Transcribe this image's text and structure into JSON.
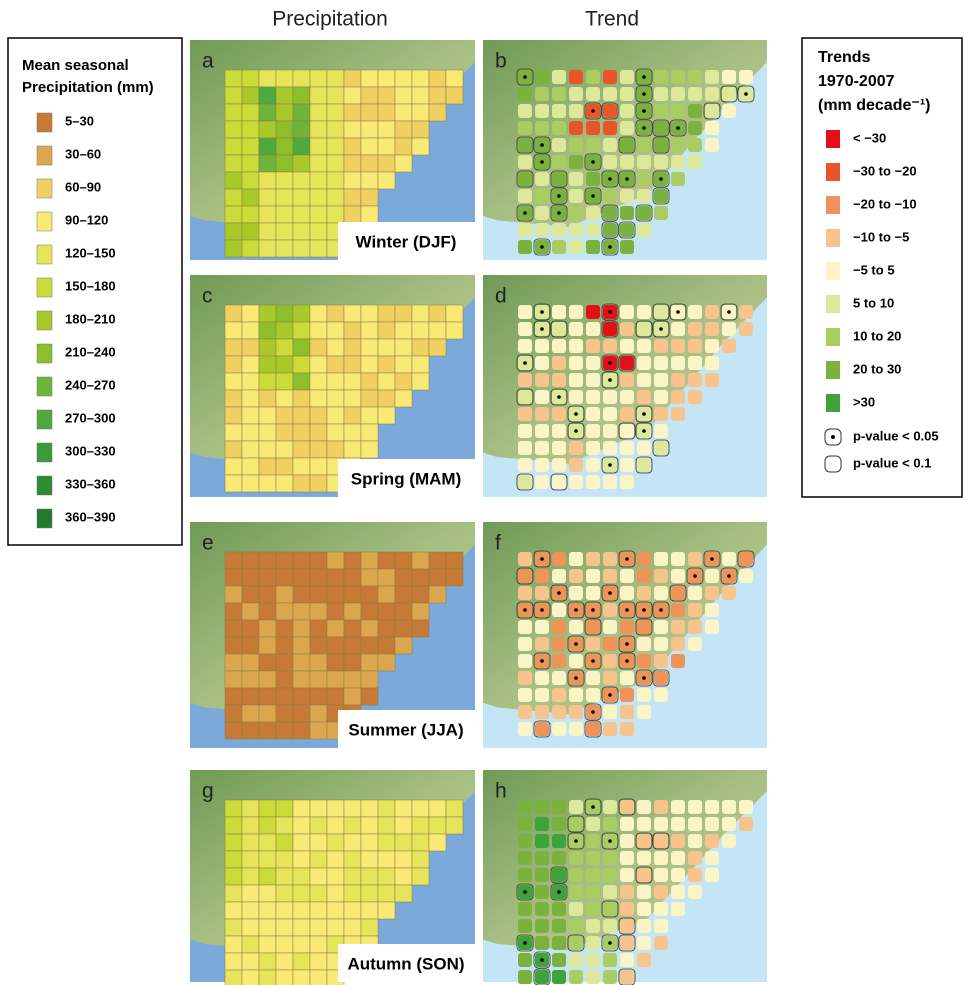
{
  "headers": {
    "precipitation": "Precipitation",
    "trend": "Trend"
  },
  "precip_legend": {
    "title_lines": [
      "Mean seasonal",
      "Precipitation (mm)"
    ],
    "items": [
      {
        "label": "5–30",
        "color": "#c77a36"
      },
      {
        "label": "30–60",
        "color": "#dba64d"
      },
      {
        "label": "60–90",
        "color": "#efd060"
      },
      {
        "label": "90–120",
        "color": "#f8ea75"
      },
      {
        "label": "120–150",
        "color": "#e5e45a"
      },
      {
        "label": "150–180",
        "color": "#cbdb3a"
      },
      {
        "label": "180–210",
        "color": "#a9c92a"
      },
      {
        "label": "210–240",
        "color": "#8dbf2a"
      },
      {
        "label": "240–270",
        "color": "#6db43a"
      },
      {
        "label": "270–300",
        "color": "#4fa93e"
      },
      {
        "label": "300–330",
        "color": "#3d9a3a"
      },
      {
        "label": "330–360",
        "color": "#2e8a33"
      },
      {
        "label": "360–390",
        "color": "#237a2d"
      }
    ]
  },
  "trend_legend": {
    "title_lines": [
      "Trends",
      "1970-2007",
      "(mm decade⁻¹)"
    ],
    "items": [
      {
        "label": "< −30",
        "color": "#e3101a"
      },
      {
        "label": "−30 to −20",
        "color": "#e8552a"
      },
      {
        "label": "−20 to −10",
        "color": "#f09358"
      },
      {
        "label": "−10 to −5",
        "color": "#f6c48c"
      },
      {
        "label": "−5 to 5",
        "color": "#fbf5c5"
      },
      {
        "label": "5 to 10",
        "color": "#dde89a"
      },
      {
        "label": "10 to 20",
        "color": "#a9cd61"
      },
      {
        "label": "20 to 30",
        "color": "#7bb23d"
      },
      {
        "label": ">30",
        "color": "#3ea33a"
      }
    ],
    "significance": [
      "p-value < 0.05",
      "p-value < 0.1"
    ]
  },
  "panels": [
    {
      "letter": "a",
      "season": "Winter (DJF)"
    },
    {
      "letter": "b"
    },
    {
      "letter": "c",
      "season": "Spring (MAM)"
    },
    {
      "letter": "d"
    },
    {
      "letter": "e",
      "season": "Summer (JJA)"
    },
    {
      "letter": "f"
    },
    {
      "letter": "g",
      "season": "Autumn (SON)"
    },
    {
      "letter": "h"
    }
  ]
}
